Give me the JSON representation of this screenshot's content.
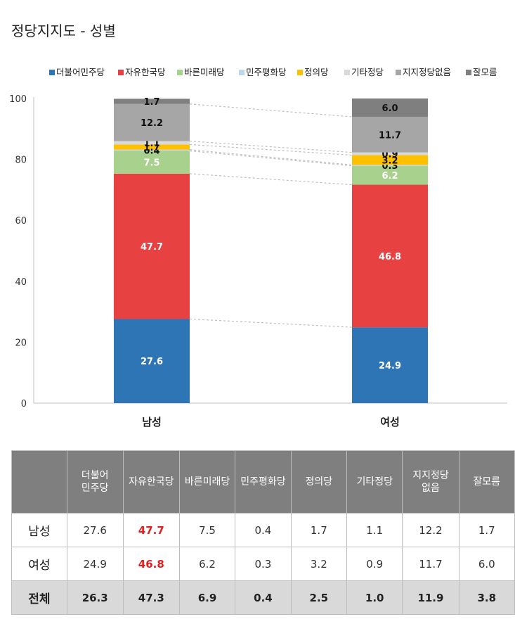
{
  "title": "정당지지도 - 성별",
  "colors": {
    "더불어민주당": "#2e75b6",
    "자유한국당": "#e84142",
    "바른미래당": "#a9d18e",
    "민주평화당": "#bdd7ee",
    "정의당": "#ffc000",
    "기타정당": "#d9d9d9",
    "지지정당없음": "#a6a6a6",
    "잘모름": "#7f7f7f"
  },
  "chart_data": {
    "type": "bar",
    "stacked": true,
    "categories": [
      "남성",
      "여성"
    ],
    "ylim": [
      0,
      100
    ],
    "yticks": [
      "0",
      "20",
      "40",
      "60",
      "80",
      "100"
    ],
    "legend_position": "top",
    "series": [
      {
        "name": "더불어민주당",
        "values": [
          27.6,
          24.9
        ]
      },
      {
        "name": "자유한국당",
        "values": [
          47.7,
          46.8
        ]
      },
      {
        "name": "바른미래당",
        "values": [
          7.5,
          6.2
        ]
      },
      {
        "name": "민주평화당",
        "values": [
          0.4,
          0.3
        ]
      },
      {
        "name": "정의당",
        "values": [
          1.7,
          3.2
        ]
      },
      {
        "name": "기타정당",
        "values": [
          1.1,
          0.9
        ]
      },
      {
        "name": "지지정당없음",
        "values": [
          12.2,
          11.7
        ]
      },
      {
        "name": "잘모름",
        "values": [
          1.7,
          6.0
        ]
      }
    ]
  },
  "table": {
    "headers": [
      "더불어\n민주당",
      "자유한국당",
      "바른미래당",
      "민주평화당",
      "정의당",
      "기타정당",
      "지지정당\n없음",
      "잘모름"
    ],
    "rows": [
      {
        "label": "남성",
        "values": [
          "27.6",
          "47.7",
          "7.5",
          "0.4",
          "1.7",
          "1.1",
          "12.2",
          "1.7"
        ]
      },
      {
        "label": "여성",
        "values": [
          "24.9",
          "46.8",
          "6.2",
          "0.3",
          "3.2",
          "0.9",
          "11.7",
          "6.0"
        ]
      },
      {
        "label": "전체",
        "values": [
          "26.3",
          "47.3",
          "6.9",
          "0.4",
          "2.5",
          "1.0",
          "11.9",
          "3.8"
        ]
      }
    ]
  }
}
